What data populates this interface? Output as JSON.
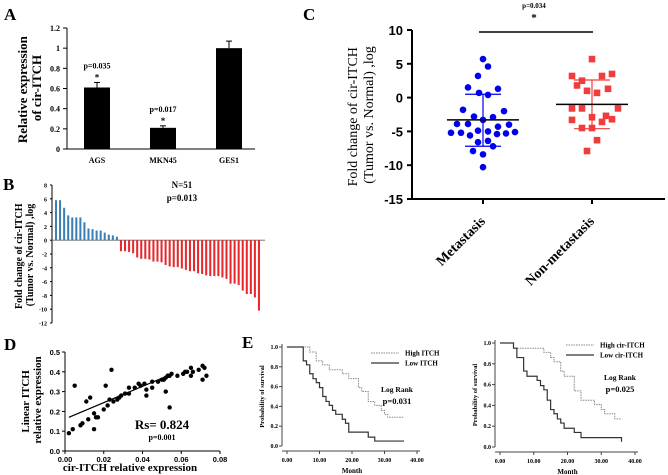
{
  "chart_data": [
    {
      "panel": "A",
      "type": "bar",
      "categories": [
        "AGS",
        "MKN45",
        "GES1"
      ],
      "values": [
        0.61,
        0.21,
        1.0
      ],
      "errors": [
        0.05,
        0.02,
        0.07
      ],
      "annotations": [
        "p=0.035\n*",
        "p=0.017\n*",
        ""
      ],
      "ylabel": "Relative expression of cir-ITCH",
      "ylim": [
        0,
        1.2
      ],
      "yticks": [
        "0",
        "0.2",
        "0.4",
        "0.6",
        "0.8",
        "1",
        "1.2"
      ],
      "color": "#000000"
    },
    {
      "panel": "B",
      "type": "bar",
      "ylabel": "Fold change of cir-ITCH (Tumor vs. Normal) ,log",
      "ylim": [
        -12,
        8
      ],
      "yticks": [
        "8",
        "6",
        "4",
        "2",
        "0",
        "-2",
        "-4",
        "-6",
        "-8",
        "-10",
        "-12"
      ],
      "annotation": [
        "N=51",
        "p=0.013"
      ],
      "values": [
        5.8,
        5.8,
        4.7,
        3.6,
        3.3,
        3.3,
        3.3,
        2.6,
        1.7,
        1.6,
        1.4,
        1.4,
        1.1,
        0.8,
        0.7,
        0.5,
        -1.6,
        -1.6,
        -1.7,
        -1.9,
        -2.5,
        -2.7,
        -2.7,
        -2.8,
        -3.1,
        -3.1,
        -3.2,
        -3.6,
        -3.8,
        -3.9,
        -3.9,
        -4.1,
        -4.3,
        -4.5,
        -4.5,
        -4.8,
        -4.9,
        -5.1,
        -5.2,
        -5.2,
        -5.2,
        -5.4,
        -5.6,
        -6.3,
        -6.3,
        -6.5,
        -7.3,
        -7.8,
        -7.8,
        -8.3,
        -10.2
      ],
      "colors": {
        "positive": "#3a7fb5",
        "negative": "#e8272a"
      }
    },
    {
      "panel": "C",
      "type": "scatter",
      "ylabel": "Fold change of cir-ITCH (Tumor vs. Normal) ,log",
      "ylim": [
        -15,
        10
      ],
      "yticks": [
        "10",
        "5",
        "0",
        "-5",
        "-10",
        "-15"
      ],
      "categories": [
        "Metastasis",
        "Non-metastasis"
      ],
      "annotation": [
        "p=0.034",
        "*"
      ],
      "series": [
        {
          "category": "Metastasis",
          "color": "#0000ee",
          "marker": "circle",
          "mean": -3.3,
          "sd_upper": 0.5,
          "sd_lower": -7.2,
          "values": [
            5.7,
            4.6,
            3.2,
            1.5,
            1.3,
            0.7,
            0.4,
            -1.8,
            -2.0,
            -2.8,
            -2.9,
            -3.3,
            -3.9,
            -3.9,
            -4.3,
            -4.0,
            -4.9,
            -5.0,
            -5.2,
            -5.2,
            -5.6,
            -5.4,
            -5.3,
            -5.1,
            -6.4,
            -6.6,
            -7.2,
            -7.9,
            -8.4,
            -10.3
          ]
        },
        {
          "category": "Non-metastasis",
          "color": "#f03c3c",
          "marker": "square",
          "mean": -1.0,
          "sd_upper": 2.6,
          "sd_lower": -4.6,
          "values": [
            5.7,
            3.2,
            3.2,
            3.5,
            2.5,
            1.8,
            1.3,
            1.0,
            0.7,
            -1.6,
            -1.6,
            -1.6,
            -2.7,
            -2.9,
            -3.2,
            -3.3,
            -3.6,
            -4.5,
            -4.5,
            -6.3,
            -7.9
          ]
        }
      ]
    },
    {
      "panel": "D",
      "type": "scatter",
      "xlabel": "cir-ITCH relative expression",
      "ylabel": "Linear ITCH relative expression",
      "xlim": [
        0,
        0.08
      ],
      "ylim": [
        0,
        0.5
      ],
      "xticks": [
        "0.00",
        "0.02",
        "0.04",
        "0.06",
        "0.08"
      ],
      "yticks": [
        "0.0",
        "0.1",
        "0.2",
        "0.3",
        "0.4",
        "0.5"
      ],
      "annotation": [
        "Rs= 0.824",
        "p=0.001"
      ],
      "trend": [
        [
          0.002,
          0.17
        ],
        [
          0.053,
          0.38
        ]
      ],
      "points": [
        [
          0.002,
          0.09
        ],
        [
          0.004,
          0.11
        ],
        [
          0.005,
          0.33
        ],
        [
          0.008,
          0.13
        ],
        [
          0.009,
          0.14
        ],
        [
          0.011,
          0.25
        ],
        [
          0.012,
          0.16
        ],
        [
          0.013,
          0.27
        ],
        [
          0.015,
          0.11
        ],
        [
          0.015,
          0.19
        ],
        [
          0.016,
          0.17
        ],
        [
          0.017,
          0.17
        ],
        [
          0.02,
          0.21
        ],
        [
          0.021,
          0.33
        ],
        [
          0.022,
          0.23
        ],
        [
          0.023,
          0.26
        ],
        [
          0.024,
          0.41
        ],
        [
          0.025,
          0.25
        ],
        [
          0.027,
          0.26
        ],
        [
          0.028,
          0.27
        ],
        [
          0.029,
          0.28
        ],
        [
          0.031,
          0.29
        ],
        [
          0.033,
          0.29
        ],
        [
          0.033,
          0.32
        ],
        [
          0.036,
          0.32
        ],
        [
          0.038,
          0.34
        ],
        [
          0.039,
          0.33
        ],
        [
          0.041,
          0.34
        ],
        [
          0.042,
          0.28
        ],
        [
          0.042,
          0.31
        ],
        [
          0.045,
          0.32
        ],
        [
          0.045,
          0.35
        ],
        [
          0.048,
          0.35
        ],
        [
          0.05,
          0.36
        ],
        [
          0.051,
          0.36
        ],
        [
          0.052,
          0.3
        ],
        [
          0.052,
          0.37
        ],
        [
          0.053,
          0.38
        ],
        [
          0.054,
          0.22
        ],
        [
          0.054,
          0.38
        ],
        [
          0.055,
          0.39
        ],
        [
          0.058,
          0.38
        ],
        [
          0.061,
          0.39
        ],
        [
          0.062,
          0.4
        ],
        [
          0.063,
          0.4
        ],
        [
          0.065,
          0.42
        ],
        [
          0.065,
          0.38
        ],
        [
          0.066,
          0.4
        ],
        [
          0.069,
          0.41
        ],
        [
          0.071,
          0.43
        ],
        [
          0.071,
          0.36
        ],
        [
          0.072,
          0.42
        ],
        [
          0.073,
          0.38
        ]
      ]
    },
    {
      "panel": "E-left",
      "type": "line",
      "xlabel": "Month",
      "ylabel": "Probability of survival",
      "xlim": [
        0,
        40
      ],
      "ylim": [
        0,
        1
      ],
      "xticks": [
        "0.00",
        "10.00",
        "20.00",
        "30.00",
        "40.00"
      ],
      "yticks": [
        "0.0",
        "0.2",
        "0.4",
        "0.6",
        "0.8",
        "1.0"
      ],
      "annotation": [
        "Log Rank",
        "p=0.031"
      ],
      "series": [
        {
          "name": "High ITCH",
          "style": "dotted",
          "steps": [
            [
              0,
              1
            ],
            [
              7,
              0.95
            ],
            [
              9,
              0.86
            ],
            [
              11,
              0.82
            ],
            [
              13,
              0.77
            ],
            [
              17,
              0.73
            ],
            [
              19,
              0.68
            ],
            [
              22,
              0.59
            ],
            [
              23,
              0.55
            ],
            [
              25,
              0.45
            ],
            [
              27,
              0.41
            ],
            [
              29,
              0.36
            ],
            [
              30,
              0.32
            ],
            [
              31,
              0.29
            ],
            [
              36,
              0.29
            ]
          ]
        },
        {
          "name": "Low  ITCH",
          "style": "solid",
          "steps": [
            [
              0,
              1
            ],
            [
              5,
              0.86
            ],
            [
              6,
              0.82
            ],
            [
              7,
              0.73
            ],
            [
              8,
              0.68
            ],
            [
              9,
              0.64
            ],
            [
              10,
              0.59
            ],
            [
              11,
              0.5
            ],
            [
              12,
              0.45
            ],
            [
              13,
              0.41
            ],
            [
              14,
              0.36
            ],
            [
              15,
              0.32
            ],
            [
              17,
              0.27
            ],
            [
              18,
              0.23
            ],
            [
              19,
              0.14
            ],
            [
              25,
              0.09
            ],
            [
              27,
              0.05
            ],
            [
              36,
              0.05
            ]
          ]
        }
      ]
    },
    {
      "panel": "E-right",
      "type": "line",
      "xlabel": "Month",
      "ylabel": "Probability of survival",
      "xlim": [
        0,
        40
      ],
      "ylim": [
        0,
        1
      ],
      "xticks": [
        "0.00",
        "10.00",
        "20.00",
        "30.00",
        "40.00"
      ],
      "yticks": [
        "0.0",
        "0.2",
        "0.4",
        "0.6",
        "0.8",
        "1.0"
      ],
      "annotation": [
        "Log Rank",
        "p=0.025"
      ],
      "series": [
        {
          "name": "High cir-ITCH",
          "style": "dotted",
          "steps": [
            [
              0,
              1
            ],
            [
              4,
              0.95
            ],
            [
              13,
              0.91
            ],
            [
              15,
              0.86
            ],
            [
              16,
              0.82
            ],
            [
              18,
              0.73
            ],
            [
              19,
              0.68
            ],
            [
              22,
              0.54
            ],
            [
              24,
              0.45
            ],
            [
              28,
              0.41
            ],
            [
              30,
              0.36
            ],
            [
              31,
              0.32
            ],
            [
              34,
              0.27
            ],
            [
              36,
              0.27
            ]
          ]
        },
        {
          "name": "Low  cir-ITCH",
          "style": "solid",
          "steps": [
            [
              0,
              1
            ],
            [
              4,
              0.95
            ],
            [
              5,
              0.86
            ],
            [
              7,
              0.73
            ],
            [
              8,
              0.68
            ],
            [
              11,
              0.64
            ],
            [
              12,
              0.59
            ],
            [
              13,
              0.55
            ],
            [
              14,
              0.45
            ],
            [
              15,
              0.36
            ],
            [
              16,
              0.32
            ],
            [
              17,
              0.27
            ],
            [
              18,
              0.23
            ],
            [
              19,
              0.18
            ],
            [
              22,
              0.14
            ],
            [
              24,
              0.09
            ],
            [
              36,
              0.09
            ],
            [
              36,
              0.05
            ]
          ]
        }
      ]
    }
  ],
  "panel_letters": [
    "A",
    "B",
    "C",
    "D",
    "E"
  ]
}
